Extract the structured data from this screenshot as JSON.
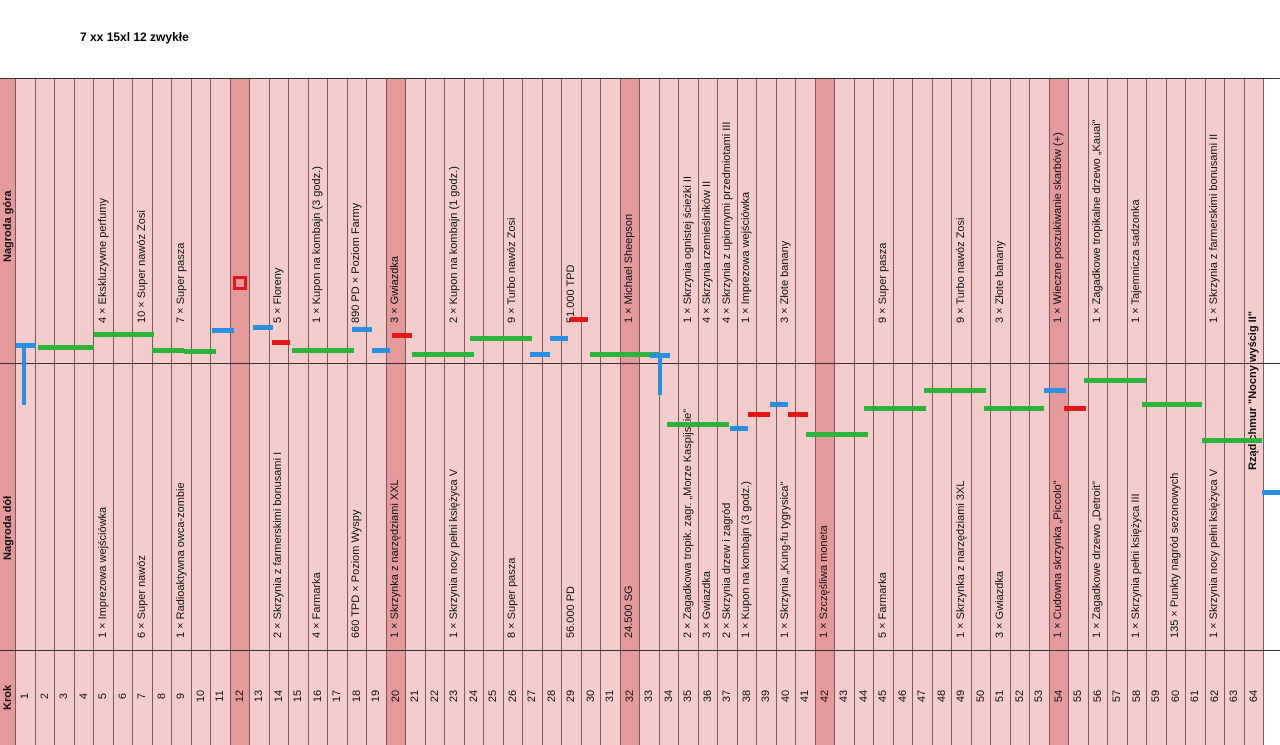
{
  "note": "7 xx  15xl 12 zwykłe",
  "header_top": "Nagroda góra",
  "header_bottom": "Nagroda dół",
  "header_step": "Krok",
  "columns": [
    {
      "step": "1",
      "top": "",
      "bottom": ""
    },
    {
      "step": "2",
      "top": "",
      "bottom": ""
    },
    {
      "step": "3",
      "top": "4 × Ekskluzywne perfumy",
      "bottom": "1 × Imprezowa wejściówka"
    },
    {
      "step": "4",
      "top": "",
      "bottom": ""
    },
    {
      "step": "5",
      "top": "10 × Super nawóz Zosi",
      "bottom": "6 × Super nawóz"
    },
    {
      "step": "6",
      "top": "",
      "bottom": ""
    },
    {
      "step": "7",
      "top": "7 × Super pasza",
      "bottom": "1 × Radioaktywna owca-zombie"
    },
    {
      "step": "8",
      "top": "",
      "bottom": ""
    },
    {
      "step": "9",
      "top": "",
      "bottom": ""
    },
    {
      "step": "10",
      "top": "",
      "bottom": ""
    },
    {
      "step": "11",
      "top": "5 × Floreny",
      "bottom": "2 × Skrzynia z farmerskimi bonusami I"
    },
    {
      "step": "12",
      "top": "1 × Kupon na kombajn (3 godz.)",
      "bottom": "4 × Farmarka"
    },
    {
      "step": "13",
      "top": "890 PD × Poziom Farmy",
      "bottom": "660 TPD × Poziom Wyspy"
    },
    {
      "step": "14",
      "top": "3 × Gwiazdka",
      "bottom": "1 × Skrzynka z narzędziami XXL"
    },
    {
      "step": "15",
      "top": "2 × Kupon na kombajn (1 godz.)",
      "bottom": "1 × Skrzynia nocy pełni księżyca V"
    },
    {
      "step": "16",
      "top": "9 × Turbo nawóz Zosi",
      "bottom": "8 × Super pasza"
    },
    {
      "step": "17",
      "top": "51.000 TPD",
      "bottom": "56.000 PD"
    },
    {
      "step": "18",
      "top": "1 × Michael Sheepson",
      "bottom": "24.500 SG"
    },
    {
      "step": "19",
      "top": "1 × Skrzynia ognistej ścieżki II",
      "bottom": "2 × Zagadkowa tropik. zagr. „Morze Kaspijskie\""
    },
    {
      "step": "20",
      "top": "4 × Skrzynia rzemieślników II",
      "bottom": "3 × Gwiazdka"
    },
    {
      "step": "21",
      "top": "4 × Skrzynia z upiornymi przedmiotami III",
      "bottom": "2 × Skrzynia drzew i zagród"
    },
    {
      "step": "22",
      "top": "1 × Imprezowa wejściówka",
      "bottom": "1 × Kupon na kombajn (3 godz.)"
    },
    {
      "step": "23",
      "top": "3 × Złote banany",
      "bottom": "1 × Skrzynia „Kung-fu tygrysica\""
    },
    {
      "step": "24",
      "top": "",
      "bottom": "1 × Szczęśliwa moneta"
    },
    {
      "step": "25",
      "top": "9 × Super pasza",
      "bottom": "5 × Farmarka"
    },
    {
      "step": "26",
      "top": "9 × Turbo nawóz Zosi",
      "bottom": "1 × Skrzynka z narzędziami 3XL"
    },
    {
      "step": "27",
      "top": "3 × Złote banany",
      "bottom": "3 × Gwiazdka"
    },
    {
      "step": "28",
      "top": "1 × Wieczne poszukiwanie skarbów (+)",
      "bottom": "1 × Cudowna skrzynka „Piccolo\""
    },
    {
      "step": "29",
      "top": "1 × Zagadkowe tropikalne drzewo „Kauai\"",
      "bottom": "1 × Zagadkowe drzewo „Detroit\""
    },
    {
      "step": "30",
      "top": "1 × Tajemnicza sadzonka",
      "bottom": "1 × Skrzynia pełni księżyca III"
    },
    {
      "step": "31",
      "top": "",
      "bottom": "135 × Punkty nagród sezonowych"
    },
    {
      "step": "32",
      "top": "1 × Skrzynia z farmerskimi bonusami II",
      "bottom": "1 × Skrzynia nocy pełni księżyca V"
    },
    {
      "step": "64",
      "top": "",
      "bottom": "Rząd chmur \"Nocny wyścig II\""
    }
  ],
  "colors": {
    "cell": "#f4cccc",
    "highlight": "#e49a9a",
    "green": "#2db23a",
    "blue": "#2a8fe0",
    "red": "#e01818"
  }
}
